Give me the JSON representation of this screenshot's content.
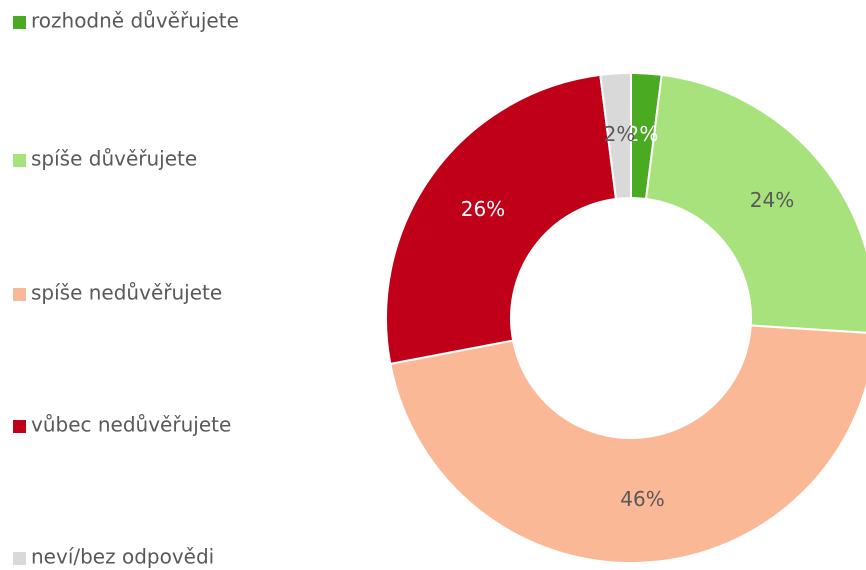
{
  "chart_data": {
    "type": "donut",
    "categories": [
      "rozhodně důvěřujete",
      "spíše důvěřujete",
      "spíše nedůvěřujete",
      "vůbec nedůvěřujete",
      "neví/bez odpovědi"
    ],
    "values": [
      2,
      24,
      46,
      26,
      2
    ],
    "value_labels": [
      "2%",
      "24%",
      "46%",
      "26%",
      "2%"
    ],
    "colors": [
      "#4aab22",
      "#a8e27c",
      "#fbb897",
      "#c00018",
      "#d9d9d9"
    ],
    "legend": "left"
  }
}
